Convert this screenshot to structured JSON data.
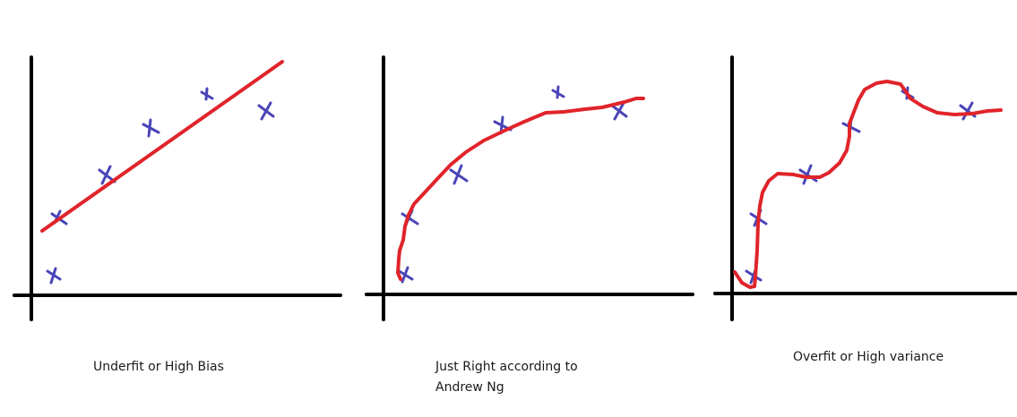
{
  "colors": {
    "axis": "#000000",
    "data_point": "#4a45b8",
    "fit_curve": "#e0242a",
    "background": "#ffffff"
  },
  "panels": [
    {
      "id": "underfit",
      "caption_lines": [
        "Underfit or High Bias"
      ],
      "fit": "linear"
    },
    {
      "id": "just-right",
      "caption_lines": [
        "Just Right according to",
        "Andrew Ng"
      ],
      "fit": "smooth-curve"
    },
    {
      "id": "overfit",
      "caption_lines": [
        "Overfit or High variance"
      ],
      "fit": "wiggly-curve"
    }
  ]
}
